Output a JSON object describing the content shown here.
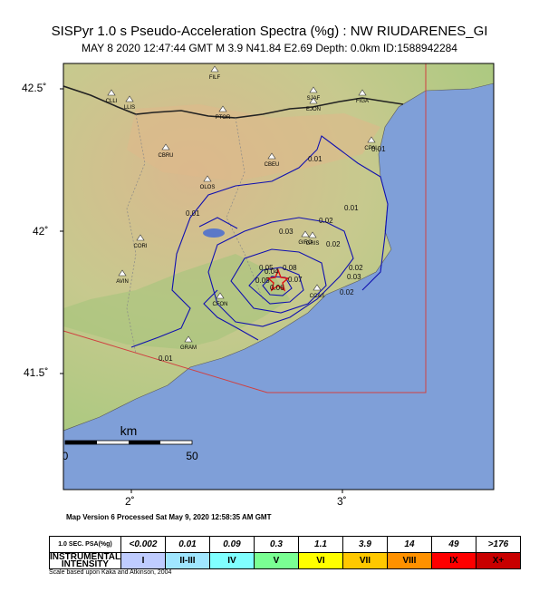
{
  "header": {
    "title": "SISPyr 1.0 s Pseudo-Acceleration Spectra (%g) : NW RIUDARENES_GI",
    "subtitle": "MAY 8 2020 12:47:44  GMT   M 3.9    N41.84 E2.69    Depth: 0.0km    ID:1588942284"
  },
  "axes": {
    "lat_labels": [
      "42.5˚",
      "42˚",
      "41.5˚"
    ],
    "lon_labels": [
      "2˚",
      "3˚"
    ]
  },
  "scale_bar": {
    "unit": "km",
    "start": "0",
    "end": "50"
  },
  "cities": [
    "FILF",
    "CLLI",
    "LLIS",
    "PTOR",
    "SJAF",
    "EJON",
    "FIGA",
    "CPAL",
    "CBRU",
    "CBEU",
    "OLOS",
    "GIRO",
    "GRIS",
    "CORI",
    "CCAS",
    "AVIN",
    "CFON",
    "GRAM"
  ],
  "contour_labels": [
    "0.01",
    "0.01",
    "0.01",
    "0.01",
    "0.02",
    "0.02",
    "0.02",
    "0.03",
    "0.03",
    "0.04",
    "0.05",
    "0.05",
    "0.06",
    "0.07",
    "0.08",
    "0.02",
    "0.01"
  ],
  "version": "Map Version 6 Processed Sat May  9, 2020 12:58:35 AM GMT",
  "legend": {
    "psa_header": "1.0 SEC. PSA(%g)",
    "psa_values": [
      "<0.002",
      "0.01",
      "0.09",
      "0.3",
      "1.1",
      "3.9",
      "14",
      "49",
      ">176"
    ],
    "intensity_header": "INSTRUMENTAL INTENSITY",
    "intensities": [
      "I",
      "II-III",
      "IV",
      "V",
      "VI",
      "VII",
      "VIII",
      "IX",
      "X+"
    ],
    "colors": [
      "#ffffff",
      "#bfccff",
      "#a0e6ff",
      "#80ffff",
      "#7aff93",
      "#ffff00",
      "#ffc800",
      "#ff9100",
      "#ff0000",
      "#c80000"
    ]
  },
  "scale_note": "Scale based upon Kaka and Atkinson, 2004",
  "colors": {
    "sea": "#7f9fd8",
    "contour": "#1010b0",
    "epicenter": "#e01010",
    "land_low": "#b8c98a",
    "land_high": "#d9b98e"
  }
}
